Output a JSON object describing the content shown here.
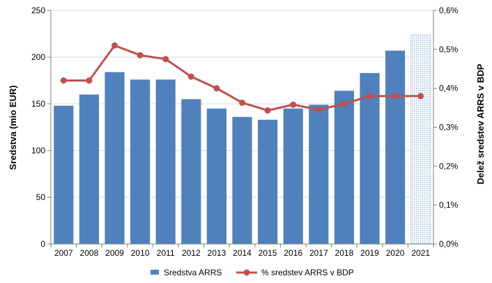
{
  "chart_data": {
    "type": "bar",
    "categories": [
      "2007",
      "2008",
      "2009",
      "2010",
      "2011",
      "2012",
      "2013",
      "2014",
      "2015",
      "2016",
      "2017",
      "2018",
      "2019",
      "2020",
      "2021"
    ],
    "series": [
      {
        "name": "Sredstva ARRS",
        "type": "bar",
        "axis": "left",
        "color": "#4f81bd",
        "values": [
          148,
          160,
          184,
          176,
          176,
          155,
          145,
          136,
          133,
          145,
          149,
          164,
          183,
          207,
          224
        ],
        "hatched_categories": [
          "2021"
        ]
      },
      {
        "name": "% sredstev ARRS v BDP",
        "type": "line",
        "axis": "right",
        "color": "#c0504d",
        "values": [
          0.42,
          0.42,
          0.51,
          0.485,
          0.475,
          0.43,
          0.4,
          0.363,
          0.343,
          0.358,
          0.345,
          0.36,
          0.38,
          0.38,
          0.38
        ]
      }
    ],
    "ylabel": "Sredstva (mio EUR)",
    "ylim": [
      0,
      250
    ],
    "yticks": [
      "0",
      "50",
      "100",
      "150",
      "200",
      "250"
    ],
    "y2label": "Delež sredstev ARRS v BDP",
    "y2lim": [
      0,
      0.6
    ],
    "y2ticks": [
      "0,0%",
      "0,1%",
      "0,2%",
      "0,3%",
      "0,4%",
      "0,5%",
      "0,6%"
    ],
    "grid": true,
    "legend_position": "bottom"
  }
}
